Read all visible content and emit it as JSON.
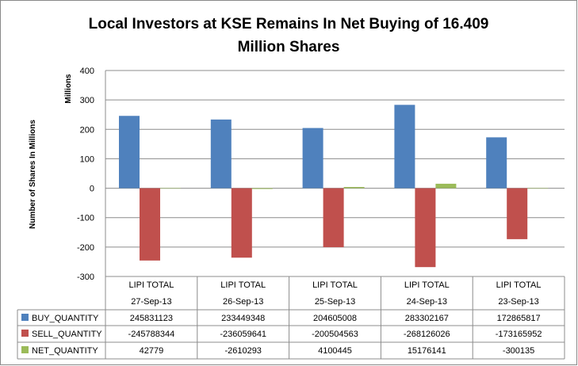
{
  "chart_data": {
    "type": "bar",
    "title_line1": "Local Investors at KSE Remains In Net Buying of 16.409",
    "title_line2": "Million Shares",
    "ylabel": "Number of Shares In Millions",
    "yunit": "Millions",
    "ylim": [
      -300,
      400
    ],
    "yticks": [
      "400",
      "300",
      "200",
      "100",
      "0",
      "-100",
      "-200",
      "-300"
    ],
    "grid": true,
    "legend": "data-table",
    "categories": [
      {
        "group": "LIPI TOTAL",
        "date": "27-Sep-13"
      },
      {
        "group": "LIPI TOTAL",
        "date": "26-Sep-13"
      },
      {
        "group": "LIPI TOTAL",
        "date": "25-Sep-13"
      },
      {
        "group": "LIPI TOTAL",
        "date": "24-Sep-13"
      },
      {
        "group": "LIPI TOTAL",
        "date": "23-Sep-13"
      }
    ],
    "series": [
      {
        "name": "BUY_QUANTITY",
        "color": "#4f81bd",
        "values": [
          "245831123",
          "233449348",
          "204605008",
          "283302167",
          "172865817"
        ]
      },
      {
        "name": "SELL_QUANTITY",
        "color": "#c0504d",
        "values": [
          "-245788344",
          "-236059641",
          "-200504563",
          "-268126026",
          "-173165952"
        ]
      },
      {
        "name": "NET_QUANTITY",
        "color": "#9bbb59",
        "values": [
          "42779",
          "-2610293",
          "4100445",
          "15176141",
          "-300135"
        ]
      }
    ]
  }
}
